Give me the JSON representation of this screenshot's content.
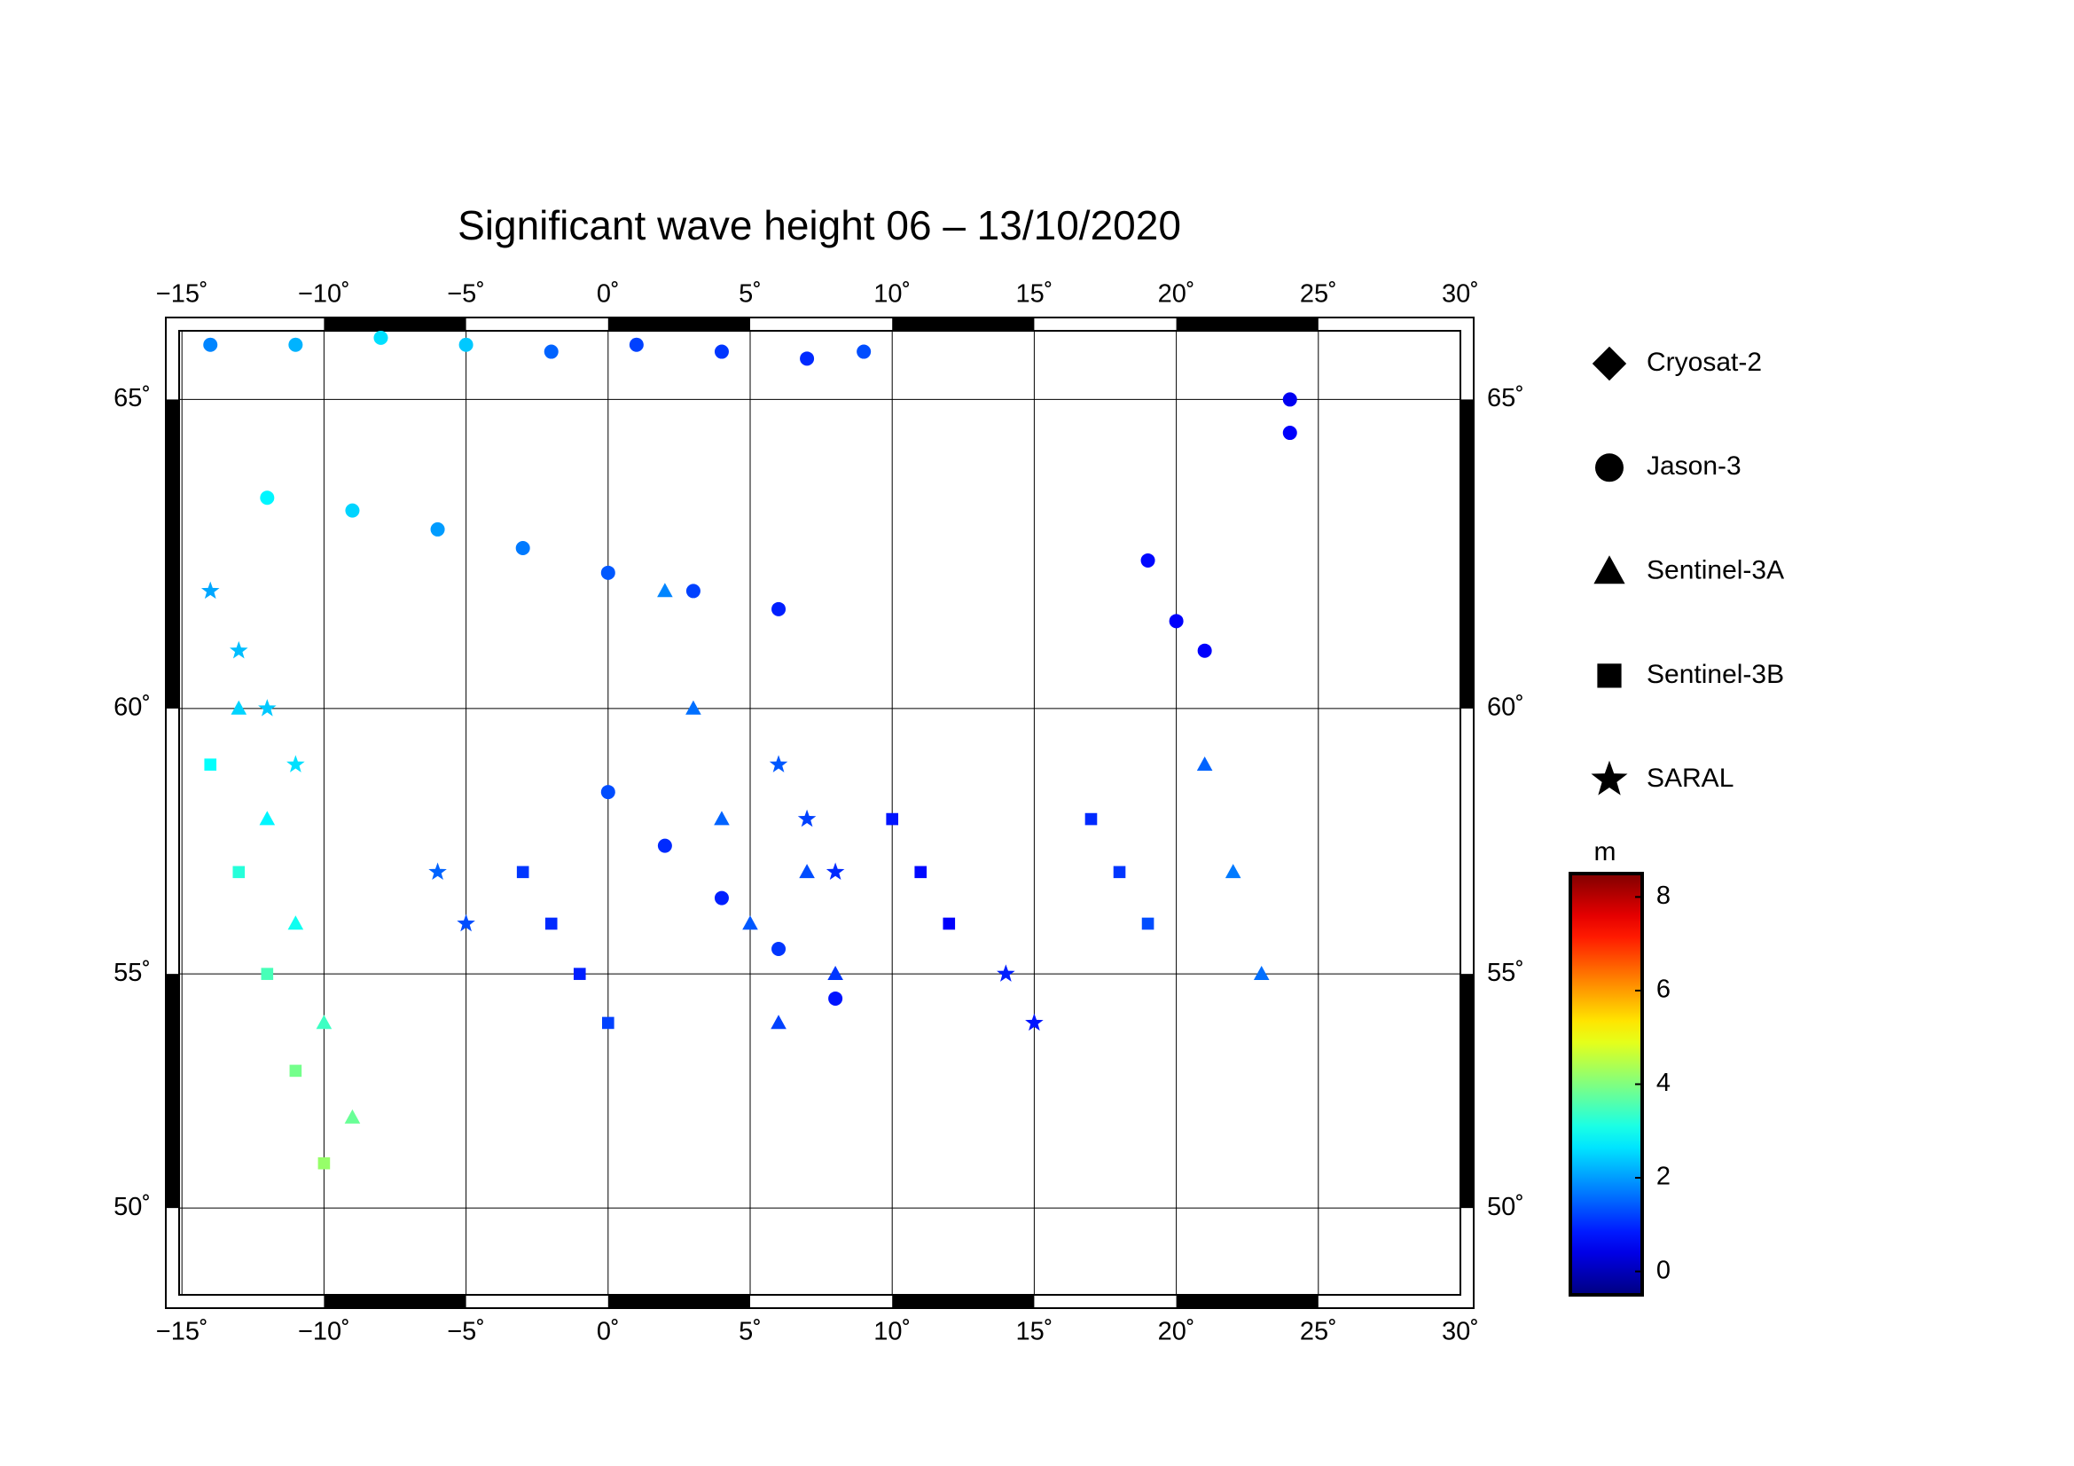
{
  "chart_data": {
    "type": "map",
    "title": "Significant wave height 06 – 13/10/2020",
    "projection": "mercator",
    "xlim": [
      -15.1,
      30
    ],
    "ylim": [
      48,
      66
    ],
    "xticks": [
      {
        "value": -15,
        "label": "−15˚"
      },
      {
        "value": -10,
        "label": "−10˚"
      },
      {
        "value": -5,
        "label": "−5˚"
      },
      {
        "value": 0,
        "label": "0˚"
      },
      {
        "value": 5,
        "label": "5˚"
      },
      {
        "value": 10,
        "label": "10˚"
      },
      {
        "value": 15,
        "label": "15˚"
      },
      {
        "value": 20,
        "label": "20˚"
      },
      {
        "value": 25,
        "label": "25˚"
      },
      {
        "value": 30,
        "label": "30˚"
      }
    ],
    "yticks": [
      {
        "value": 50,
        "label": "50˚"
      },
      {
        "value": 55,
        "label": "55˚"
      },
      {
        "value": 60,
        "label": "60˚"
      },
      {
        "value": 65,
        "label": "65˚"
      }
    ],
    "grid": true,
    "colorbar": {
      "label": "m",
      "lim": [
        -0.5,
        8.5
      ],
      "ticks": [
        0,
        2,
        4,
        6,
        8
      ],
      "colormap": "jet"
    },
    "series": [
      {
        "name": "Cryosat-2",
        "marker": "diamond",
        "x": [],
        "y": [],
        "values": []
      },
      {
        "name": "Jason-3",
        "marker": "circle",
        "x": [
          -14,
          -11,
          -8,
          -5,
          -2,
          1,
          4,
          7,
          9,
          -12,
          -9,
          -6,
          -3,
          0,
          3,
          6,
          0,
          2,
          4,
          6,
          8,
          19,
          20,
          21,
          24,
          24
        ],
        "y": [
          65.8,
          65.8,
          65.9,
          65.8,
          65.7,
          65.8,
          65.7,
          65.6,
          65.7,
          63.5,
          63.3,
          63.0,
          62.7,
          62.3,
          62.0,
          61.7,
          58.5,
          57.5,
          56.5,
          55.5,
          54.5,
          62.5,
          61.5,
          61.0,
          65.0,
          64.5
        ],
        "values": [
          1.8,
          2.2,
          2.6,
          2.4,
          1.5,
          1.2,
          1.1,
          1.0,
          1.3,
          2.8,
          2.5,
          2.0,
          1.7,
          1.4,
          1.2,
          0.9,
          1.3,
          1.0,
          0.9,
          1.1,
          0.8,
          0.7,
          0.6,
          0.6,
          0.5,
          0.6
        ]
      },
      {
        "name": "Sentinel-3A",
        "marker": "triangle",
        "x": [
          -13,
          -12,
          -11,
          -10,
          -9,
          2,
          3,
          4,
          5,
          6,
          7,
          8,
          21,
          22,
          23
        ],
        "y": [
          60,
          58,
          56,
          54,
          52,
          62,
          60,
          58,
          56,
          54,
          57,
          55,
          59,
          57,
          55
        ],
        "values": [
          2.5,
          2.8,
          3.0,
          3.4,
          3.8,
          1.8,
          1.6,
          1.5,
          1.4,
          1.2,
          1.3,
          1.1,
          1.5,
          1.7,
          1.6
        ]
      },
      {
        "name": "Sentinel-3B",
        "marker": "square",
        "x": [
          -14,
          -13,
          -12,
          -11,
          -10,
          -3,
          -2,
          -1,
          0,
          10,
          11,
          12,
          17,
          18,
          19
        ],
        "y": [
          59,
          57,
          55,
          53,
          51,
          57,
          56,
          55,
          54,
          58,
          57,
          56,
          58,
          57,
          56
        ],
        "values": [
          2.9,
          3.2,
          3.5,
          3.9,
          4.2,
          1.1,
          1.0,
          0.9,
          1.2,
          0.8,
          0.7,
          0.6,
          1.0,
          1.1,
          1.3
        ]
      },
      {
        "name": "SARAL",
        "marker": "star",
        "x": [
          -14,
          -13,
          -12,
          -11,
          -6,
          -5,
          6,
          7,
          8,
          14,
          15
        ],
        "y": [
          62,
          61,
          60,
          59,
          57,
          56,
          59,
          58,
          57,
          55,
          54
        ],
        "values": [
          2.1,
          2.3,
          2.4,
          2.6,
          1.5,
          1.3,
          1.4,
          1.2,
          1.0,
          0.9,
          0.8
        ]
      }
    ]
  }
}
